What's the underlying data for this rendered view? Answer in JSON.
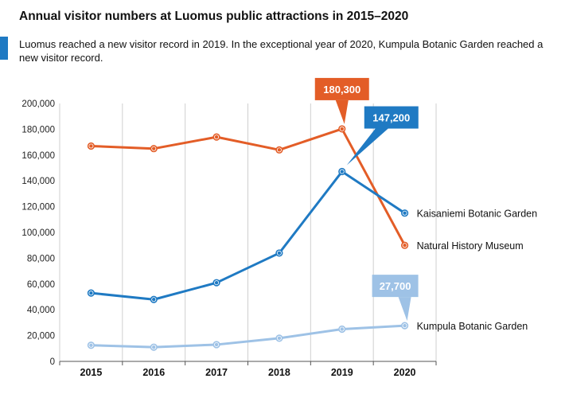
{
  "header": {
    "title": "Annual visitor numbers at Luomus public attractions in 2015–2020",
    "subtitle": "Luomus reached a new visitor record in 2019. In the exceptional year of 2020, Kumpula Botanic Garden reached a new visitor record."
  },
  "chart_data": {
    "type": "line",
    "title": "Annual visitor numbers at Luomus public attractions in 2015–2020",
    "xlabel": "",
    "ylabel": "",
    "x": [
      "2015",
      "2016",
      "2017",
      "2018",
      "2019",
      "2020"
    ],
    "ylim": [
      0,
      200000
    ],
    "y_ticks": [
      0,
      20000,
      40000,
      60000,
      80000,
      100000,
      120000,
      140000,
      160000,
      180000,
      200000
    ],
    "y_tick_labels": [
      "0",
      "20,000",
      "40,000",
      "60,000",
      "80,000",
      "100,000",
      "120,000",
      "140,000",
      "160,000",
      "180,000",
      "200,000"
    ],
    "grid": "vertical",
    "series": [
      {
        "name": "Natural History Museum",
        "color": "#e35d27",
        "values": [
          167000,
          165000,
          174000,
          164000,
          180300,
          90000
        ],
        "callout": {
          "year_index": 4,
          "text": "180,300"
        }
      },
      {
        "name": "Kaisaniemi Botanic Garden",
        "color": "#1f7ac3",
        "values": [
          53000,
          48000,
          61000,
          84000,
          147200,
          115000
        ],
        "callout": {
          "year_index": 4,
          "text": "147,200"
        }
      },
      {
        "name": "Kumpula Botanic Garden",
        "color": "#9ec2e6",
        "values": [
          12500,
          11000,
          13000,
          18000,
          25000,
          27700
        ],
        "callout": {
          "year_index": 5,
          "text": "27,700"
        }
      }
    ]
  }
}
